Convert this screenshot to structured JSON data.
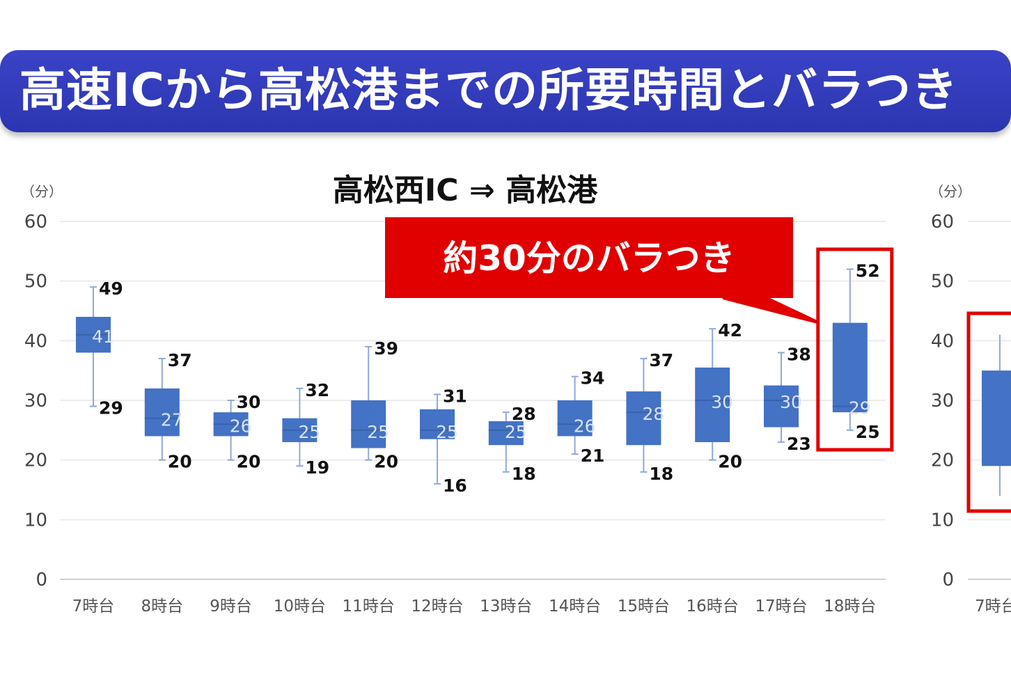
{
  "banner": {
    "title": "高速ICから高松港までの所要時間とバラつき"
  },
  "chart_data": [
    {
      "type": "box",
      "title": "高松西IC ⇒ 高松港",
      "ylabel": "（分）",
      "ylim": [
        0,
        60
      ],
      "yticks": [
        "60",
        "50",
        "40",
        "30",
        "20",
        "10",
        "0"
      ],
      "categories": [
        "7時台",
        "8時台",
        "9時台",
        "10時台",
        "11時台",
        "12時台",
        "13時台",
        "14時台",
        "15時台",
        "16時台",
        "17時台",
        "18時台"
      ],
      "boxes": [
        {
          "max": 49,
          "q3": 44,
          "median": 41,
          "q1": 38,
          "min": 29
        },
        {
          "max": 37,
          "q3": 32,
          "median": 27,
          "q1": 24,
          "min": 20
        },
        {
          "max": 30,
          "q3": 28,
          "median": 26,
          "q1": 24,
          "min": 20
        },
        {
          "max": 32,
          "q3": 27,
          "median": 25,
          "q1": 23,
          "min": 19
        },
        {
          "max": 39,
          "q3": 30,
          "median": 25,
          "q1": 22,
          "min": 20
        },
        {
          "max": 31,
          "q3": 28.5,
          "median": 25,
          "q1": 23.5,
          "min": 16
        },
        {
          "max": 28,
          "q3": 26.5,
          "median": 25,
          "q1": 22.5,
          "min": 18
        },
        {
          "max": 34,
          "q3": 30,
          "median": 26,
          "q1": 24,
          "min": 21
        },
        {
          "max": 37,
          "q3": 31.5,
          "median": 28,
          "q1": 22.5,
          "min": 18
        },
        {
          "max": 42,
          "q3": 35.5,
          "median": 30,
          "q1": 23,
          "min": 20
        },
        {
          "max": 38,
          "q3": 32.5,
          "median": 30,
          "q1": 25.5,
          "min": 23
        },
        {
          "max": 52,
          "q3": 43,
          "median": 29,
          "q1": 28,
          "min": 25
        }
      ],
      "labels": [
        {
          "max": "49",
          "median": "41",
          "min": "29"
        },
        {
          "max": "37",
          "median": "27",
          "min": "20"
        },
        {
          "max": "30",
          "median": "26",
          "min": "20"
        },
        {
          "max": "32",
          "median": "25",
          "min": "19"
        },
        {
          "max": "39",
          "median": "25",
          "min": "20"
        },
        {
          "max": "31",
          "median": "25",
          "min": "16"
        },
        {
          "max": "28",
          "median": "25",
          "min": "18"
        },
        {
          "max": "34",
          "median": "26",
          "min": "21"
        },
        {
          "max": "37",
          "median": "28",
          "min": "18"
        },
        {
          "max": "42",
          "median": "30",
          "min": "20"
        },
        {
          "max": "38",
          "median": "30",
          "min": "23"
        },
        {
          "max": "52",
          "median": "29",
          "min": "25"
        }
      ],
      "annotation": {
        "text": "約30分のバラつき",
        "target_category": "18時台"
      },
      "colors": {
        "box": "#4472c4",
        "whisker": "#8ea9db",
        "highlight": "#e00000"
      }
    },
    {
      "type": "box",
      "partial": true,
      "ylabel": "（分）",
      "ylim": [
        0,
        60
      ],
      "yticks": [
        "60",
        "50",
        "40",
        "30",
        "20",
        "10",
        "0"
      ],
      "categories": [
        "7時台"
      ],
      "boxes": [
        {
          "max": 41,
          "q3": 35,
          "median": 31,
          "q1": 19,
          "min": 14
        }
      ]
    }
  ]
}
